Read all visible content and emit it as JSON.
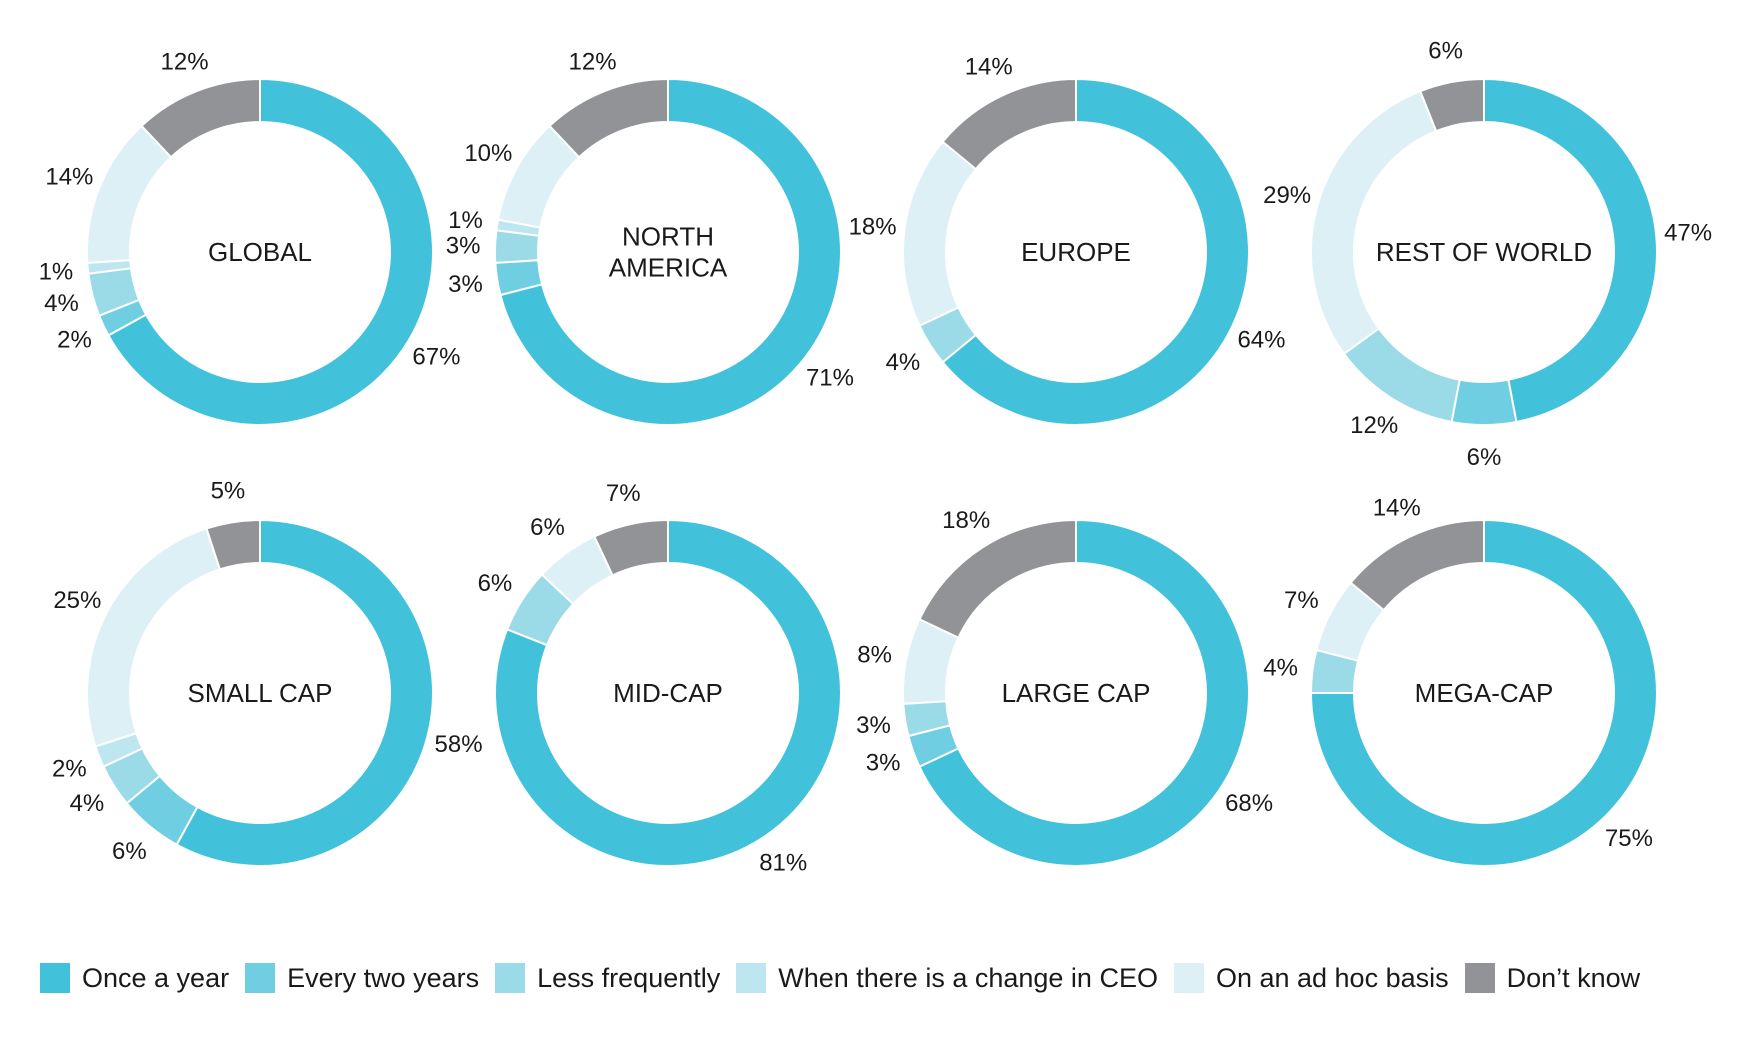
{
  "legend": [
    {
      "label": "Once a year",
      "color": "#42c2da"
    },
    {
      "label": "Every two years",
      "color": "#6fcee2"
    },
    {
      "label": "Less frequently",
      "color": "#9bdae7"
    },
    {
      "label": "When there is a change in CEO",
      "color": "#bde6f0"
    },
    {
      "label": "On an ad hoc basis",
      "color": "#ddf0f6"
    },
    {
      "label": "Don’t know",
      "color": "#929396"
    }
  ],
  "chart_data": [
    {
      "type": "pie",
      "title": "GLOBAL",
      "categories": [
        "Once a year",
        "Every two years",
        "Less frequently",
        "When there is a change in CEO",
        "On an ad hoc basis",
        "Don’t know"
      ],
      "values": [
        67,
        2,
        4,
        1,
        14,
        12
      ],
      "labels": [
        "67%",
        "2%",
        "4%",
        "1%",
        "14%",
        "12%"
      ]
    },
    {
      "type": "pie",
      "title": "NORTH AMERICA",
      "title_lines": [
        "NORTH",
        "AMERICA"
      ],
      "categories": [
        "Once a year",
        "Every two years",
        "Less frequently",
        "When there is a change in CEO",
        "On an ad hoc basis",
        "Don’t know"
      ],
      "values": [
        71,
        3,
        3,
        1,
        10,
        12
      ],
      "labels": [
        "71%",
        "3%",
        "3%",
        "1%",
        "10%",
        "12%"
      ]
    },
    {
      "type": "pie",
      "title": "EUROPE",
      "categories": [
        "Once a year",
        "Every two years",
        "Less frequently",
        "When there is a change in CEO",
        "On an ad hoc basis",
        "Don’t know"
      ],
      "values": [
        64,
        0,
        4,
        0,
        18,
        14
      ],
      "labels": [
        "64%",
        "",
        "4%",
        "",
        "18%",
        "14%"
      ]
    },
    {
      "type": "pie",
      "title": "REST OF WORLD",
      "categories": [
        "Once a year",
        "Every two years",
        "Less frequently",
        "When there is a change in CEO",
        "On an ad hoc basis",
        "Don’t know"
      ],
      "values": [
        47,
        6,
        12,
        0,
        29,
        6
      ],
      "labels": [
        "47%",
        "6%",
        "12%",
        "",
        "29%",
        "6%"
      ]
    },
    {
      "type": "pie",
      "title": "SMALL CAP",
      "categories": [
        "Once a year",
        "Every two years",
        "Less frequently",
        "When there is a change in CEO",
        "On an ad hoc basis",
        "Don’t know"
      ],
      "values": [
        58,
        6,
        4,
        2,
        25,
        5
      ],
      "labels": [
        "58%",
        "6%",
        "4%",
        "2%",
        "25%",
        "5%"
      ]
    },
    {
      "type": "pie",
      "title": "MID-CAP",
      "categories": [
        "Once a year",
        "Every two years",
        "Less frequently",
        "When there is a change in CEO",
        "On an ad hoc basis",
        "Don’t know"
      ],
      "values": [
        81,
        0,
        6,
        0,
        6,
        7
      ],
      "labels": [
        "81%",
        "",
        "6%",
        "",
        "6%",
        "7%"
      ]
    },
    {
      "type": "pie",
      "title": "LARGE CAP",
      "categories": [
        "Once a year",
        "Every two years",
        "Less frequently",
        "When there is a change in CEO",
        "On an ad hoc basis",
        "Don’t know"
      ],
      "values": [
        68,
        3,
        3,
        0,
        8,
        18
      ],
      "labels": [
        "68%",
        "3%",
        "3%",
        "",
        "8%",
        "18%"
      ]
    },
    {
      "type": "pie",
      "title": "MEGA-CAP",
      "categories": [
        "Once a year",
        "Every two years",
        "Less frequently",
        "When there is a change in CEO",
        "On an ad hoc basis",
        "Don’t know"
      ],
      "values": [
        75,
        0,
        4,
        0,
        7,
        14
      ],
      "labels": [
        "75%",
        "",
        "4%",
        "",
        "7%",
        "14%"
      ]
    }
  ]
}
